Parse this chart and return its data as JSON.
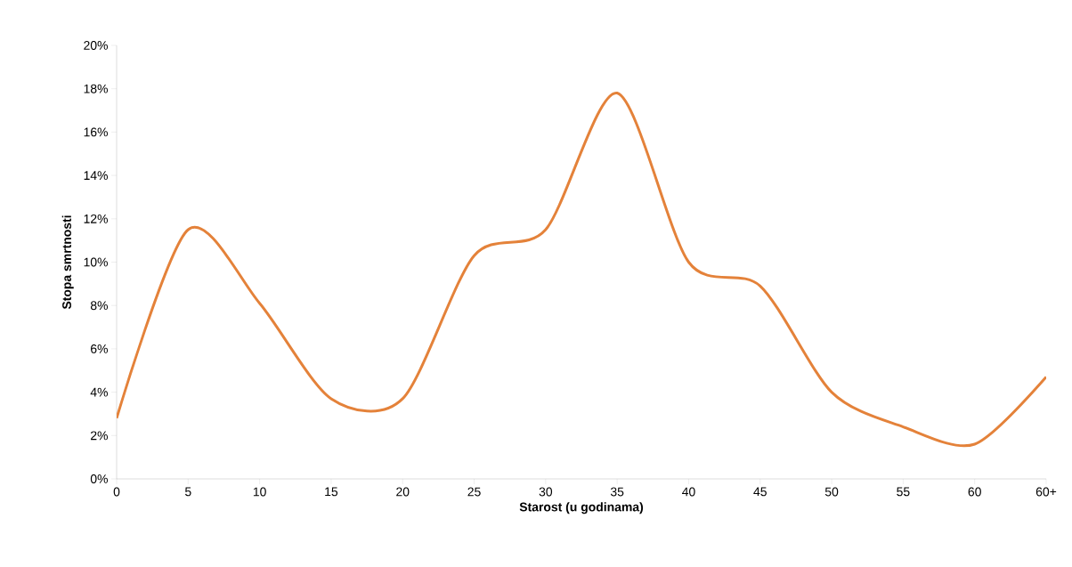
{
  "chart_data": {
    "type": "line",
    "xlabel": "Starost (u godinama)",
    "ylabel": "Stopa smrtnosti",
    "categories": [
      "0",
      "5",
      "10",
      "15",
      "20",
      "25",
      "30",
      "35",
      "40",
      "45",
      "50",
      "55",
      "60",
      "60+"
    ],
    "series": [
      {
        "color": "#e4823a",
        "values": [
          2.8,
          11.5,
          8.1,
          3.7,
          3.7,
          10.3,
          11.5,
          17.8,
          10.0,
          8.9,
          4.0,
          2.4,
          1.6,
          4.7
        ]
      }
    ],
    "ylim": [
      0,
      20
    ],
    "yticks": [
      {
        "value": 0,
        "label": "0%"
      },
      {
        "value": 2,
        "label": "2%"
      },
      {
        "value": 4,
        "label": "4%"
      },
      {
        "value": 6,
        "label": "6%"
      },
      {
        "value": 8,
        "label": "8%"
      },
      {
        "value": 10,
        "label": "10%"
      },
      {
        "value": 12,
        "label": "12%"
      },
      {
        "value": 14,
        "label": "14%"
      },
      {
        "value": 16,
        "label": "16%"
      },
      {
        "value": 18,
        "label": "18%"
      },
      {
        "value": 20,
        "label": "20%"
      }
    ],
    "marker": "none",
    "line_style": "solid"
  }
}
